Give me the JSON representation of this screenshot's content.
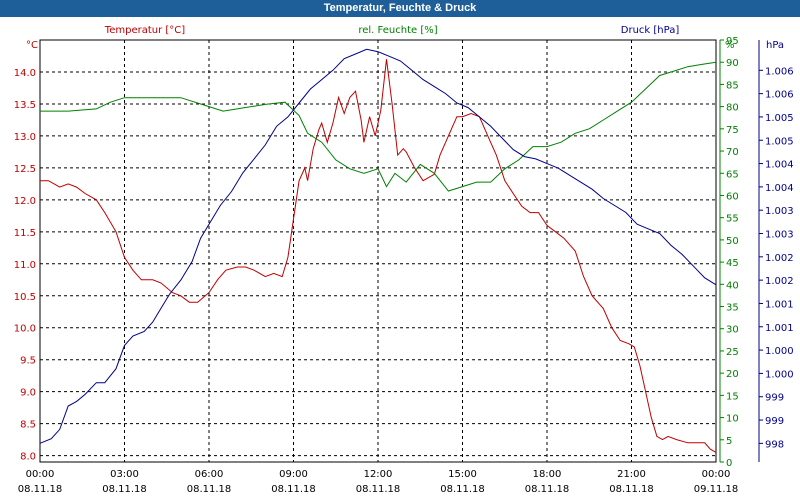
{
  "window": {
    "title": "Temperatur, Feuchte & Druck"
  },
  "chart_data": {
    "type": "line",
    "title": "Temperatur, Feuchte & Druck",
    "grid": true,
    "x_ticks": [
      {
        "time": "00:00",
        "date": "08.11.18"
      },
      {
        "time": "03:00",
        "date": "08.11.18"
      },
      {
        "time": "06:00",
        "date": "08.11.18"
      },
      {
        "time": "09:00",
        "date": "08.11.18"
      },
      {
        "time": "12:00",
        "date": "08.11.18"
      },
      {
        "time": "15:00",
        "date": "08.11.18"
      },
      {
        "time": "18:00",
        "date": "08.11.18"
      },
      {
        "time": "21:00",
        "date": "08.11.18"
      },
      {
        "time": "00:00",
        "date": "09.11.18"
      }
    ],
    "x_range_hours": [
      0,
      24
    ],
    "axes": {
      "temp": {
        "label": "Temperatur [°C]",
        "unit": "°C",
        "color": "#c00000",
        "min": 7.9,
        "max": 14.5,
        "ticks": [
          "8.0",
          "8.5",
          "9.0",
          "9.5",
          "10.0",
          "10.5",
          "11.0",
          "11.5",
          "12.0",
          "12.5",
          "13.0",
          "13.5",
          "14.0"
        ]
      },
      "hum": {
        "label": "rel. Feuchte [%]",
        "unit": "%",
        "color": "#008000",
        "min": 0,
        "max": 95,
        "ticks": [
          "0",
          "5",
          "10",
          "15",
          "20",
          "25",
          "30",
          "35",
          "40",
          "45",
          "50",
          "55",
          "60",
          "65",
          "70",
          "75",
          "80",
          "85",
          "90",
          "95"
        ]
      },
      "press": {
        "label": "Druck [hPa]",
        "unit": "hPa",
        "color": "#00008b",
        "min": 997.6,
        "max": 1006.65,
        "ticks": [
          {
            "v": 998,
            "t": "998"
          },
          {
            "v": 998.5,
            "t": "999"
          },
          {
            "v": 999,
            "t": "999"
          },
          {
            "v": 999.5,
            "t": "1.000"
          },
          {
            "v": 1000,
            "t": "1.000"
          },
          {
            "v": 1000.5,
            "t": "1.001"
          },
          {
            "v": 1001,
            "t": "1.001"
          },
          {
            "v": 1001.5,
            "t": "1.002"
          },
          {
            "v": 1002,
            "t": "1.002"
          },
          {
            "v": 1002.5,
            "t": "1.003"
          },
          {
            "v": 1003,
            "t": "1.003"
          },
          {
            "v": 1003.5,
            "t": "1.004"
          },
          {
            "v": 1004,
            "t": "1.004"
          },
          {
            "v": 1004.5,
            "t": "1.005"
          },
          {
            "v": 1005,
            "t": "1.005"
          },
          {
            "v": 1005.5,
            "t": "1.006"
          },
          {
            "v": 1006,
            "t": "1.006"
          }
        ]
      }
    },
    "series": [
      {
        "name": "Temperatur [°C]",
        "axis": "temp",
        "color": "#c00000",
        "points": [
          [
            0,
            12.3
          ],
          [
            0.3,
            12.3
          ],
          [
            0.7,
            12.2
          ],
          [
            1.0,
            12.25
          ],
          [
            1.3,
            12.2
          ],
          [
            1.6,
            12.1
          ],
          [
            2.0,
            12.0
          ],
          [
            2.3,
            11.8
          ],
          [
            2.7,
            11.5
          ],
          [
            3.0,
            11.1
          ],
          [
            3.3,
            10.9
          ],
          [
            3.6,
            10.75
          ],
          [
            4.0,
            10.75
          ],
          [
            4.3,
            10.7
          ],
          [
            4.7,
            10.55
          ],
          [
            5.0,
            10.5
          ],
          [
            5.3,
            10.4
          ],
          [
            5.6,
            10.4
          ],
          [
            6.0,
            10.55
          ],
          [
            6.3,
            10.75
          ],
          [
            6.6,
            10.9
          ],
          [
            7.0,
            10.95
          ],
          [
            7.3,
            10.95
          ],
          [
            7.6,
            10.9
          ],
          [
            8.0,
            10.8
          ],
          [
            8.3,
            10.85
          ],
          [
            8.6,
            10.8
          ],
          [
            8.8,
            11.1
          ],
          [
            9.0,
            11.7
          ],
          [
            9.2,
            12.3
          ],
          [
            9.4,
            12.5
          ],
          [
            9.5,
            12.3
          ],
          [
            9.7,
            12.8
          ],
          [
            9.9,
            13.1
          ],
          [
            10.0,
            13.2
          ],
          [
            10.2,
            12.9
          ],
          [
            10.4,
            13.2
          ],
          [
            10.6,
            13.6
          ],
          [
            10.8,
            13.35
          ],
          [
            11.0,
            13.6
          ],
          [
            11.2,
            13.7
          ],
          [
            11.4,
            13.25
          ],
          [
            11.5,
            12.9
          ],
          [
            11.7,
            13.3
          ],
          [
            11.9,
            13.0
          ],
          [
            12.1,
            13.4
          ],
          [
            12.3,
            14.2
          ],
          [
            12.5,
            13.5
          ],
          [
            12.7,
            12.7
          ],
          [
            12.9,
            12.8
          ],
          [
            13.0,
            12.75
          ],
          [
            13.3,
            12.5
          ],
          [
            13.6,
            12.3
          ],
          [
            14.0,
            12.4
          ],
          [
            14.2,
            12.7
          ],
          [
            14.5,
            13.0
          ],
          [
            14.8,
            13.3
          ],
          [
            15.0,
            13.3
          ],
          [
            15.3,
            13.35
          ],
          [
            15.6,
            13.3
          ],
          [
            15.9,
            13.0
          ],
          [
            16.2,
            12.7
          ],
          [
            16.5,
            12.3
          ],
          [
            16.8,
            12.1
          ],
          [
            17.1,
            11.9
          ],
          [
            17.4,
            11.8
          ],
          [
            17.7,
            11.8
          ],
          [
            18.0,
            11.6
          ],
          [
            18.3,
            11.5
          ],
          [
            18.6,
            11.4
          ],
          [
            19.0,
            11.2
          ],
          [
            19.3,
            10.8
          ],
          [
            19.6,
            10.5
          ],
          [
            20.0,
            10.3
          ],
          [
            20.3,
            10.0
          ],
          [
            20.6,
            9.8
          ],
          [
            20.9,
            9.75
          ],
          [
            21.1,
            9.7
          ],
          [
            21.3,
            9.4
          ],
          [
            21.5,
            9.0
          ],
          [
            21.7,
            8.6
          ],
          [
            21.9,
            8.3
          ],
          [
            22.1,
            8.25
          ],
          [
            22.3,
            8.3
          ],
          [
            22.6,
            8.25
          ],
          [
            23.0,
            8.2
          ],
          [
            23.3,
            8.2
          ],
          [
            23.6,
            8.2
          ],
          [
            23.8,
            8.1
          ],
          [
            24.0,
            8.05
          ]
        ]
      },
      {
        "name": "rel. Feuchte [%]",
        "axis": "hum",
        "color": "#008000",
        "points": [
          [
            0,
            79
          ],
          [
            1.0,
            79
          ],
          [
            2.0,
            79.5
          ],
          [
            2.5,
            81
          ],
          [
            3.0,
            82
          ],
          [
            4.0,
            82
          ],
          [
            5.0,
            82
          ],
          [
            6.0,
            80
          ],
          [
            6.5,
            79
          ],
          [
            7.0,
            79.5
          ],
          [
            8.0,
            80.5
          ],
          [
            8.7,
            81
          ],
          [
            9.2,
            78
          ],
          [
            9.5,
            74
          ],
          [
            10.0,
            72
          ],
          [
            10.5,
            68
          ],
          [
            11.0,
            66
          ],
          [
            11.5,
            65
          ],
          [
            12.0,
            66
          ],
          [
            12.3,
            62
          ],
          [
            12.6,
            65
          ],
          [
            13.0,
            63
          ],
          [
            13.5,
            67
          ],
          [
            14.0,
            65
          ],
          [
            14.5,
            61
          ],
          [
            15.0,
            62
          ],
          [
            15.5,
            63
          ],
          [
            16.0,
            63
          ],
          [
            16.5,
            66
          ],
          [
            17.0,
            68
          ],
          [
            17.5,
            71
          ],
          [
            18.0,
            71
          ],
          [
            18.5,
            72
          ],
          [
            19.0,
            74
          ],
          [
            19.5,
            75
          ],
          [
            20.0,
            77
          ],
          [
            20.5,
            79
          ],
          [
            21.0,
            81
          ],
          [
            21.5,
            84
          ],
          [
            22.0,
            87
          ],
          [
            22.5,
            88
          ],
          [
            23.0,
            89
          ],
          [
            23.5,
            89.5
          ],
          [
            24.0,
            90
          ]
        ]
      },
      {
        "name": "Druck [hPa]",
        "axis": "press",
        "color": "#00008b",
        "points": [
          [
            0,
            998.0
          ],
          [
            0.4,
            998.1
          ],
          [
            0.7,
            998.3
          ],
          [
            1.0,
            998.8
          ],
          [
            1.3,
            998.9
          ],
          [
            1.6,
            999.05
          ],
          [
            2.0,
            999.3
          ],
          [
            2.3,
            999.3
          ],
          [
            2.7,
            999.6
          ],
          [
            3.0,
            1000.1
          ],
          [
            3.3,
            1000.3
          ],
          [
            3.7,
            1000.4
          ],
          [
            4.0,
            1000.6
          ],
          [
            4.3,
            1000.9
          ],
          [
            4.6,
            1001.2
          ],
          [
            5.0,
            1001.5
          ],
          [
            5.4,
            1001.9
          ],
          [
            5.7,
            1002.4
          ],
          [
            6.0,
            1002.7
          ],
          [
            6.4,
            1003.1
          ],
          [
            6.8,
            1003.4
          ],
          [
            7.2,
            1003.8
          ],
          [
            7.6,
            1004.1
          ],
          [
            8.0,
            1004.4
          ],
          [
            8.4,
            1004.8
          ],
          [
            8.8,
            1005.0
          ],
          [
            9.2,
            1005.3
          ],
          [
            9.6,
            1005.6
          ],
          [
            10.0,
            1005.8
          ],
          [
            10.4,
            1006.0
          ],
          [
            10.8,
            1006.25
          ],
          [
            11.2,
            1006.35
          ],
          [
            11.6,
            1006.45
          ],
          [
            12.0,
            1006.4
          ],
          [
            12.4,
            1006.3
          ],
          [
            12.8,
            1006.2
          ],
          [
            13.2,
            1006.0
          ],
          [
            13.6,
            1005.8
          ],
          [
            14.0,
            1005.65
          ],
          [
            14.4,
            1005.5
          ],
          [
            14.8,
            1005.3
          ],
          [
            15.2,
            1005.2
          ],
          [
            15.6,
            1005.0
          ],
          [
            16.0,
            1004.8
          ],
          [
            16.4,
            1004.55
          ],
          [
            16.8,
            1004.3
          ],
          [
            17.2,
            1004.15
          ],
          [
            17.6,
            1004.1
          ],
          [
            18.0,
            1004.0
          ],
          [
            18.4,
            1003.9
          ],
          [
            18.8,
            1003.75
          ],
          [
            19.2,
            1003.6
          ],
          [
            19.6,
            1003.45
          ],
          [
            20.0,
            1003.25
          ],
          [
            20.4,
            1003.1
          ],
          [
            20.8,
            1002.95
          ],
          [
            21.2,
            1002.7
          ],
          [
            21.6,
            1002.6
          ],
          [
            22.0,
            1002.5
          ],
          [
            22.4,
            1002.25
          ],
          [
            22.8,
            1002.05
          ],
          [
            23.2,
            1001.8
          ],
          [
            23.6,
            1001.55
          ],
          [
            24.0,
            1001.4
          ]
        ]
      }
    ]
  }
}
